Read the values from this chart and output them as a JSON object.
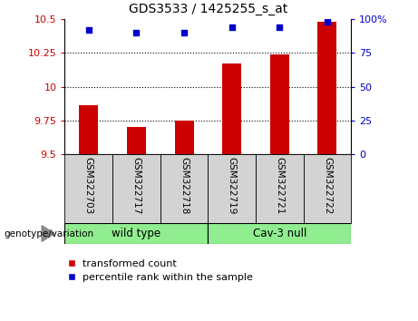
{
  "title": "GDS3533 / 1425255_s_at",
  "samples": [
    "GSM322703",
    "GSM322717",
    "GSM322718",
    "GSM322719",
    "GSM322721",
    "GSM322722"
  ],
  "transformed_counts": [
    9.86,
    9.7,
    9.75,
    10.17,
    10.24,
    10.48
  ],
  "percentile_ranks": [
    92,
    90,
    90,
    94,
    94,
    98
  ],
  "ylim_left": [
    9.5,
    10.5
  ],
  "ylim_right": [
    0,
    100
  ],
  "yticks_left": [
    9.5,
    9.75,
    10.0,
    10.25,
    10.5
  ],
  "yticks_right": [
    0,
    25,
    50,
    75,
    100
  ],
  "ytick_labels_left": [
    "9.5",
    "9.75",
    "10",
    "10.25",
    "10.5"
  ],
  "ytick_labels_right": [
    "0",
    "25",
    "50",
    "75",
    "100%"
  ],
  "bar_color": "#cc0000",
  "dot_color": "#0000cc",
  "groups": [
    {
      "label": "wild type",
      "indices": [
        0,
        1,
        2
      ],
      "color": "#90ee90"
    },
    {
      "label": "Cav-3 null",
      "indices": [
        3,
        4,
        5
      ],
      "color": "#90ee90"
    }
  ],
  "genotype_label": "genotype/variation",
  "legend_bar_label": "transformed count",
  "legend_dot_label": "percentile rank within the sample",
  "title_fontsize": 10,
  "tick_fontsize": 8,
  "bar_color_red": "#cc0000",
  "dot_color_blue": "#0000cc",
  "gray_box_color": "#d3d3d3",
  "green_color": "#90ee90",
  "bar_width": 0.4
}
